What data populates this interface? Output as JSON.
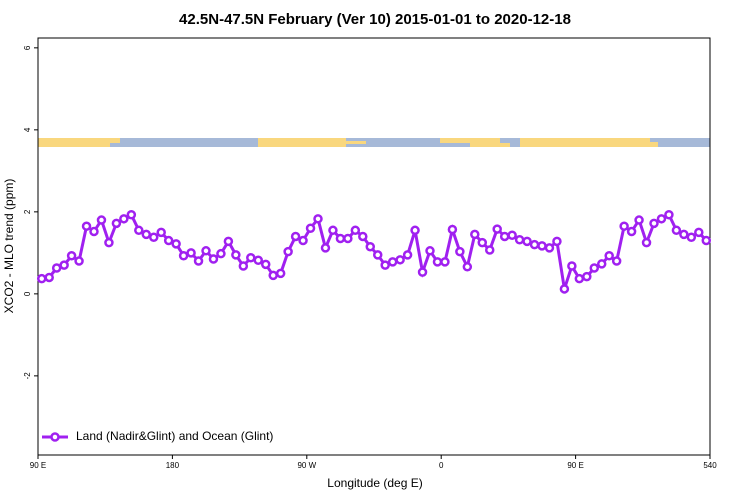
{
  "chart_data": {
    "type": "line",
    "title": "42.5N-47.5N February (Ver 10)   2015-01-01 to 2020-12-18",
    "x_label": "Longitude (deg E)",
    "y_label": "XCO2 - MLO trend (ppm)",
    "xlim": [
      90,
      540
    ],
    "ylim": [
      -3.93,
      6.24
    ],
    "xticks": [
      {
        "value": 90,
        "label": "90 E"
      },
      180,
      {
        "value": 270,
        "label": "90 W"
      },
      {
        "value": 360,
        "label": "0"
      },
      {
        "value": 450,
        "label": "90 E"
      },
      540
    ],
    "yticks": [
      -2,
      0,
      2,
      4,
      6
    ],
    "legend": "bottomleft",
    "x": [
      92.5,
      97.5,
      102.5,
      107.5,
      112.5,
      117.5,
      122.5,
      127.5,
      132.5,
      137.5,
      142.5,
      147.5,
      152.5,
      157.5,
      162.5,
      167.5,
      172.5,
      177.5,
      182.5,
      187.5,
      192.5,
      197.5,
      202.5,
      207.5,
      212.5,
      217.5,
      222.5,
      227.5,
      232.5,
      237.5,
      242.5,
      247.5,
      252.5,
      257.5,
      262.5,
      267.5,
      272.5,
      277.5,
      282.5,
      287.5,
      292.5,
      297.5,
      302.5,
      307.5,
      312.5,
      317.5,
      322.5,
      327.5,
      332.5,
      337.5,
      342.5,
      347.5,
      352.5,
      357.5,
      362.5,
      367.5,
      372.5,
      377.5,
      382.5,
      387.5,
      392.5,
      397.5,
      402.5,
      407.5,
      412.5,
      417.5,
      422.5,
      427.5,
      432.5,
      437.5,
      442.5,
      447.5,
      452.5,
      457.5,
      462.5,
      467.5,
      472.5,
      477.5,
      482.5,
      487.5,
      492.5,
      497.5,
      502.5,
      507.5,
      512.5,
      517.5,
      522.5,
      527.5,
      532.5,
      537.5
    ],
    "series": [
      {
        "name": "Land (Nadir&Glint) and Ocean (Glint)",
        "color": "#a020f0",
        "values": [
          0.37,
          0.4,
          0.63,
          0.7,
          0.93,
          0.8,
          1.65,
          1.52,
          1.8,
          1.25,
          1.72,
          1.83,
          1.93,
          1.55,
          1.45,
          1.38,
          1.5,
          1.3,
          1.22,
          0.93,
          1.0,
          0.8,
          1.05,
          0.85,
          0.98,
          1.28,
          0.95,
          0.68,
          0.88,
          0.82,
          0.72,
          0.45,
          0.5,
          1.03,
          1.4,
          1.3,
          1.6,
          1.83,
          1.12,
          1.55,
          1.35,
          1.35,
          1.55,
          1.4,
          1.15,
          0.95,
          0.7,
          0.78,
          0.83,
          0.95,
          1.55,
          0.53,
          1.05,
          0.78,
          0.78,
          1.57,
          1.03,
          0.66,
          1.45,
          1.25,
          1.07,
          1.58,
          1.4,
          1.43,
          1.32,
          1.28,
          1.2,
          1.17,
          1.12,
          1.28,
          0.12,
          0.68,
          0.37,
          0.42,
          0.63,
          0.73,
          0.93,
          0.8,
          1.65,
          1.52,
          1.8,
          1.25,
          1.72,
          1.83,
          1.93,
          1.55,
          1.45,
          1.38,
          1.5,
          1.3
        ]
      }
    ]
  }
}
